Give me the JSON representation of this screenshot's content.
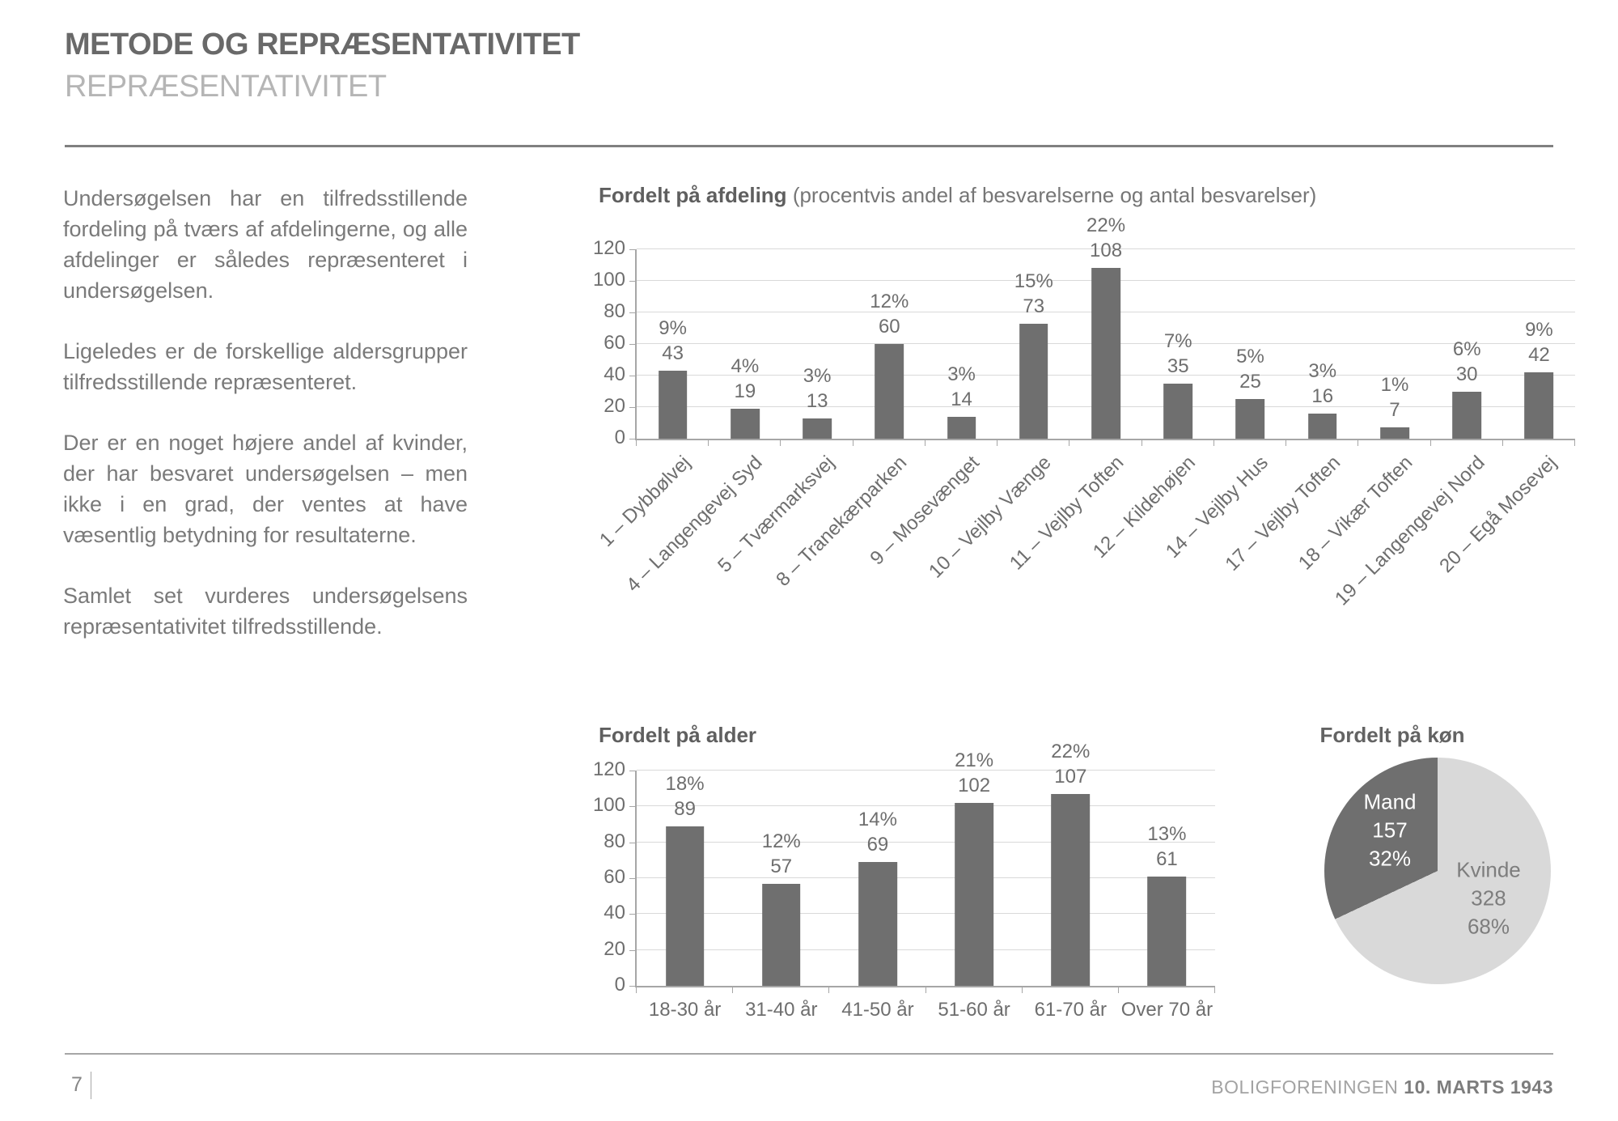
{
  "page": {
    "title": "METODE OG REPRÆSENTATIVITET",
    "subtitle": "REPRÆSENTATIVITET"
  },
  "body_paragraphs": [
    "Undersøgelsen har en tilfredsstillende fordeling på tværs af afdelingerne, og alle afdelinger er således repræsenteret i undersøgelsen.",
    "Ligeledes er de forskellige aldersgrupper tilfredsstillende repræsenteret.",
    "Der er en noget højere andel af kvinder, der har besvaret undersøgelsen – men ikke i en grad, der ventes at have væsentlig betydning for resultaterne.",
    "Samlet set vurderes undersøgelsens repræsentativitet tilfredsstillende."
  ],
  "chart_data": [
    {
      "id": "afdeling",
      "type": "bar",
      "title_bold": "Fordelt på afdeling",
      "title_note": "(procentvis andel af besvarelserne og antal besvarelser)",
      "categories": [
        "1 – Dybbølvej",
        "4 – Langengevej Syd",
        "5 – Tværmarksvej",
        "8 – Tranekærparken",
        "9 – Mosevænget",
        "10 – Vejlby Vænge",
        "11 – Vejlby Toften",
        "12 – Kildehøjen",
        "14 – Vejlby Hus",
        "17 – Vejlby Toften",
        "18 – Vikær Toften",
        "19 – Langengevej Nord",
        "20 – Egå Mosevej"
      ],
      "values": [
        43,
        19,
        13,
        60,
        14,
        73,
        108,
        35,
        25,
        16,
        7,
        30,
        42
      ],
      "percent_labels": [
        "9%",
        "4%",
        "3%",
        "12%",
        "3%",
        "15%",
        "22%",
        "7%",
        "5%",
        "3%",
        "1%",
        "6%",
        "9%"
      ],
      "ylim": [
        0,
        120
      ],
      "ytick_step": 20,
      "grid": true,
      "xlabel_rotation": 45
    },
    {
      "id": "alder",
      "type": "bar",
      "title_bold": "Fordelt på alder",
      "title_note": "",
      "categories": [
        "18-30 år",
        "31-40 år",
        "41-50 år",
        "51-60 år",
        "61-70 år",
        "Over 70 år"
      ],
      "values": [
        89,
        57,
        69,
        102,
        107,
        61
      ],
      "percent_labels": [
        "18%",
        "12%",
        "14%",
        "21%",
        "22%",
        "13%"
      ],
      "ylim": [
        0,
        120
      ],
      "ytick_step": 20,
      "grid": true,
      "xlabel_rotation": 0
    },
    {
      "id": "koen",
      "type": "pie",
      "title_bold": "Fordelt på køn",
      "slices": [
        {
          "label": "Kvinde",
          "count": 328,
          "percent": 68,
          "percent_label": "68%"
        },
        {
          "label": "Mand",
          "count": 157,
          "percent": 32,
          "percent_label": "32%"
        }
      ]
    }
  ],
  "footer": {
    "page_number": "7",
    "org": "BOLIGFORENINGEN",
    "date": "10. MARTS 1943"
  },
  "colors": {
    "title": "#696969",
    "subtitle": "#b5b5b5",
    "body": "#7a7a7a",
    "chart_label": "#6e6e6e",
    "bar": "#6f6f6f",
    "pie_dark": "#6f6f6f",
    "pie_light": "#d9d9d9",
    "gridline": "#d9d9d9",
    "axis": "#a6a6a6",
    "divider": "#808080"
  }
}
